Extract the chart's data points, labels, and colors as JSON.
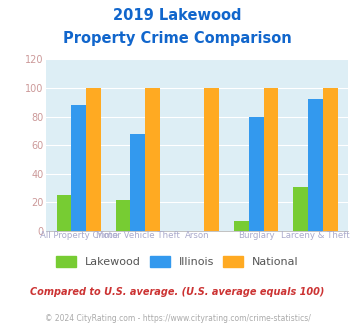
{
  "title_line1": "2019 Lakewood",
  "title_line2": "Property Crime Comparison",
  "categories": [
    "All Property Crime",
    "Motor Vehicle Theft",
    "Arson",
    "Burglary",
    "Larceny & Theft"
  ],
  "series": {
    "Lakewood": [
      25,
      22,
      0,
      7,
      31
    ],
    "Illinois": [
      88,
      68,
      0,
      80,
      92
    ],
    "National": [
      100,
      100,
      100,
      100,
      100
    ]
  },
  "colors": {
    "Lakewood": "#77cc33",
    "Illinois": "#3399ee",
    "National": "#ffaa22"
  },
  "ylim": [
    0,
    120
  ],
  "yticks": [
    0,
    20,
    40,
    60,
    80,
    100,
    120
  ],
  "background_color": "#ddeef5",
  "title_color": "#1166cc",
  "x_bottom_labels": {
    "0": "All Property Crime",
    "2": "Arson",
    "4": "Larceny & Theft"
  },
  "x_top_labels": {
    "1": "Motor Vehicle Theft",
    "3": "Burglary"
  },
  "footnote1": "Compared to U.S. average. (U.S. average equals 100)",
  "footnote2": "© 2024 CityRating.com - https://www.cityrating.com/crime-statistics/",
  "footnote1_color": "#cc3333",
  "footnote2_color": "#aaaaaa",
  "ytick_color": "#cc9999",
  "xlabel_color": "#aaaacc"
}
